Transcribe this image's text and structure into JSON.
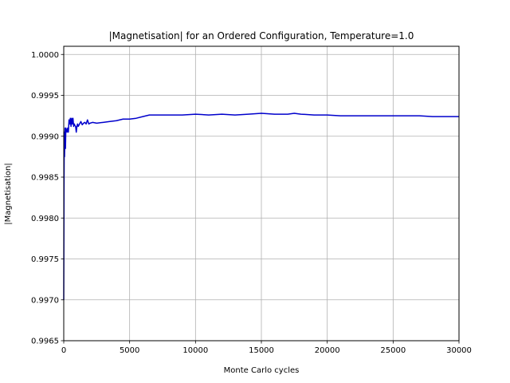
{
  "chart_data": {
    "type": "line",
    "title": "|Magnetisation| for an Ordered Configuration, Temperature=1.0",
    "xlabel": "Monte Carlo cycles",
    "ylabel": "|Magnetisation|",
    "xlim": [
      0,
      30000
    ],
    "ylim": [
      0.9965,
      1.0001
    ],
    "xticks": [
      0,
      5000,
      10000,
      15000,
      20000,
      25000,
      30000
    ],
    "xtick_labels": [
      "0",
      "5000",
      "10000",
      "15000",
      "20000",
      "25000",
      "30000"
    ],
    "yticks": [
      0.9965,
      0.997,
      0.9975,
      0.998,
      0.9985,
      0.999,
      0.9995,
      1.0
    ],
    "ytick_labels": [
      "0.9965",
      "0.9970",
      "0.9975",
      "0.9980",
      "0.9985",
      "0.9990",
      "0.9995",
      "1.0000"
    ],
    "grid": true,
    "series": [
      {
        "color": "#0000cc",
        "x": [
          0,
          20,
          40,
          60,
          80,
          100,
          130,
          160,
          200,
          250,
          300,
          350,
          400,
          450,
          500,
          550,
          600,
          650,
          700,
          750,
          800,
          850,
          900,
          950,
          1000,
          1050,
          1100,
          1200,
          1300,
          1400,
          1500,
          1600,
          1700,
          1800,
          1900,
          2000,
          2200,
          2500,
          3000,
          3500,
          4000,
          4500,
          5000,
          5500,
          6000,
          6500,
          7000,
          8000,
          9000,
          10000,
          11000,
          12000,
          13000,
          14000,
          15000,
          16000,
          17000,
          17500,
          18000,
          19000,
          20000,
          21000,
          22000,
          23000,
          24000,
          25000,
          26000,
          27000,
          28000,
          29000,
          30000
        ],
        "values": [
          0.997,
          0.9983,
          0.99905,
          0.99875,
          0.99895,
          0.9991,
          0.99885,
          0.9991,
          0.99908,
          0.99905,
          0.9991,
          0.99905,
          0.9992,
          0.99915,
          0.99922,
          0.99912,
          0.99922,
          0.99915,
          0.99922,
          0.99912,
          0.99915,
          0.99913,
          0.99912,
          0.99905,
          0.99912,
          0.99915,
          0.99912,
          0.99915,
          0.99918,
          0.99914,
          0.99916,
          0.99917,
          0.99915,
          0.9992,
          0.99915,
          0.99916,
          0.99917,
          0.99916,
          0.99917,
          0.99918,
          0.99919,
          0.99921,
          0.99921,
          0.99922,
          0.99924,
          0.99926,
          0.99926,
          0.99926,
          0.99926,
          0.99927,
          0.99926,
          0.99927,
          0.99926,
          0.99927,
          0.99928,
          0.99927,
          0.99927,
          0.99928,
          0.99927,
          0.99926,
          0.99926,
          0.99925,
          0.99925,
          0.99925,
          0.99925,
          0.99925,
          0.99925,
          0.99925,
          0.99924,
          0.99924,
          0.99924
        ]
      }
    ]
  }
}
